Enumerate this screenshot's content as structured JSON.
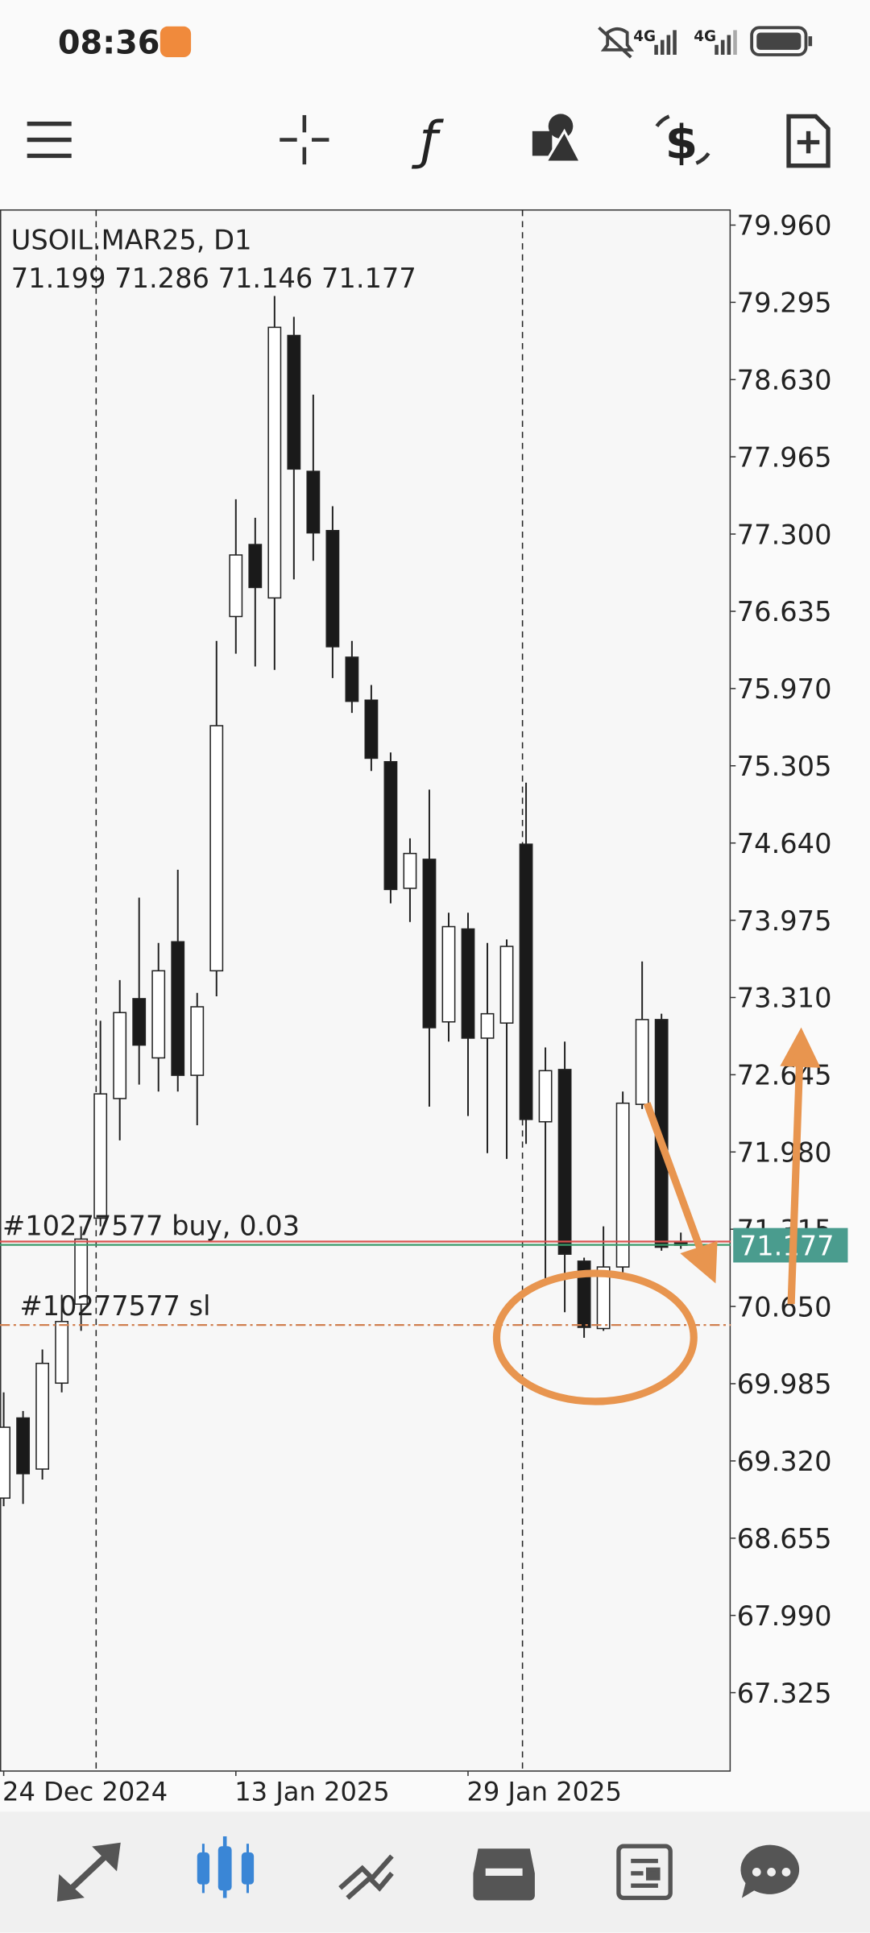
{
  "status_bar": {
    "time": "08:36",
    "network": [
      "4G",
      "4G"
    ]
  },
  "chart_data": {
    "type": "candlestick",
    "title": "USOIL.MAR25, D1",
    "categories": [
      "24 Dec 2024",
      null,
      null,
      null,
      null,
      null,
      null,
      null,
      null,
      null,
      null,
      null,
      "13 Jan 2025",
      null,
      null,
      null,
      null,
      null,
      null,
      null,
      null,
      null,
      null,
      null,
      "29 Jan 2025",
      null,
      null,
      null,
      null,
      null,
      null,
      null,
      null,
      null,
      null,
      null
    ],
    "open": [
      69.0,
      69.69,
      69.25,
      69.99,
      70.67,
      71.41,
      72.44,
      73.3,
      72.79,
      73.79,
      72.64,
      73.54,
      76.59,
      77.21,
      76.75,
      79.01,
      77.84,
      77.33,
      76.24,
      75.87,
      75.34,
      74.25,
      74.5,
      73.1,
      73.9,
      72.96,
      73.09,
      74.63,
      72.24,
      72.69,
      71.04,
      70.46,
      70.99,
      72.39,
      73.12,
      71.199
    ],
    "high": [
      69.91,
      69.75,
      70.28,
      70.75,
      71.34,
      73.11,
      73.46,
      74.17,
      73.78,
      74.41,
      73.35,
      76.38,
      77.6,
      77.44,
      79.35,
      79.17,
      78.5,
      77.54,
      76.38,
      76.0,
      75.42,
      74.68,
      75.1,
      74.04,
      74.04,
      73.78,
      73.81,
      75.16,
      72.88,
      72.93,
      71.07,
      71.34,
      72.5,
      73.62,
      73.17,
      71.286
    ],
    "low": [
      68.93,
      68.95,
      69.16,
      69.91,
      70.44,
      71.34,
      72.08,
      72.56,
      72.5,
      72.5,
      72.21,
      73.32,
      76.27,
      76.16,
      76.13,
      76.91,
      77.07,
      76.06,
      75.76,
      75.26,
      74.12,
      73.96,
      72.37,
      72.93,
      72.29,
      71.97,
      71.92,
      72.05,
      70.86,
      70.6,
      70.38,
      70.44,
      70.91,
      72.35,
      71.13,
      71.146
    ],
    "close": [
      69.61,
      69.21,
      70.16,
      70.52,
      71.23,
      72.48,
      73.18,
      72.9,
      73.54,
      72.64,
      73.23,
      75.65,
      77.12,
      76.84,
      79.08,
      77.86,
      77.31,
      76.33,
      75.86,
      75.37,
      74.24,
      74.55,
      73.05,
      73.92,
      72.96,
      73.17,
      73.75,
      72.26,
      72.68,
      71.1,
      70.47,
      70.99,
      72.4,
      73.12,
      71.16,
      71.177
    ],
    "ylim": [
      66.65,
      80.09
    ],
    "yticks": [
      {
        "value": 79.96,
        "label": "79.960"
      },
      79.295,
      {
        "value": 78.63,
        "label": "78.630"
      },
      77.965,
      {
        "value": 77.3,
        "label": "77.300"
      },
      76.635,
      {
        "value": 75.97,
        "label": "75.970"
      },
      75.305,
      {
        "value": 74.64,
        "label": "74.640"
      },
      73.975,
      {
        "value": 73.31,
        "label": "73.310"
      },
      72.645,
      {
        "value": 71.98,
        "label": "71.980"
      },
      71.315,
      {
        "value": 70.65,
        "label": "70.650"
      },
      69.985,
      {
        "value": 69.32,
        "label": "69.320"
      },
      68.655,
      {
        "value": 67.99,
        "label": "67.990"
      },
      67.325
    ],
    "grid": false,
    "up_color": "#ffffff",
    "down_color": "#1a1a1a",
    "price_label_color": "#4a9c8e",
    "orders": [
      {
        "label": "#10277577 buy, 0.03",
        "price": 71.18,
        "color": "#3a9a6a"
      },
      {
        "label": "#10277577 sl",
        "price": 70.49,
        "color": "#d08050"
      }
    ]
  }
}
